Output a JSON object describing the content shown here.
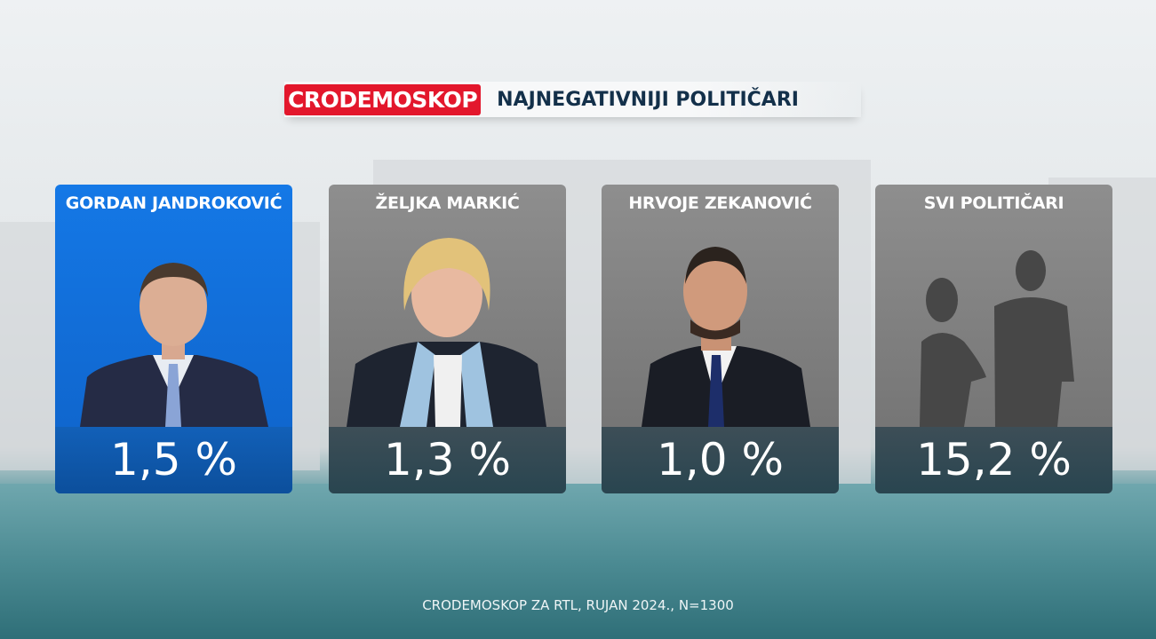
{
  "header": {
    "brand": "CRODEMOSKOP",
    "title": "NAJNEGATIVNIJI POLITIČARI"
  },
  "cards": [
    {
      "name": "GORDAN JANDROKOVIĆ",
      "value": "1,5 %",
      "trend": "down",
      "highlighted": true
    },
    {
      "name": "ŽELJKA MARKIĆ",
      "value": "1,3 %",
      "trend": "down",
      "highlighted": false
    },
    {
      "name": "HRVOJE ZEKANOVIĆ",
      "value": "1,0 %",
      "trend": "down",
      "highlighted": false
    },
    {
      "name": "SVI POLITIČARI",
      "value": "15,2 %",
      "trend": null,
      "highlighted": false
    }
  ],
  "footer": "CRODEMOSKOP ZA RTL,  RUJAN 2024., N=1300",
  "colors": {
    "brand_red": "#e3172c",
    "highlight_blue": "#1478e6",
    "trend_down_green": "#2ecc1e"
  }
}
